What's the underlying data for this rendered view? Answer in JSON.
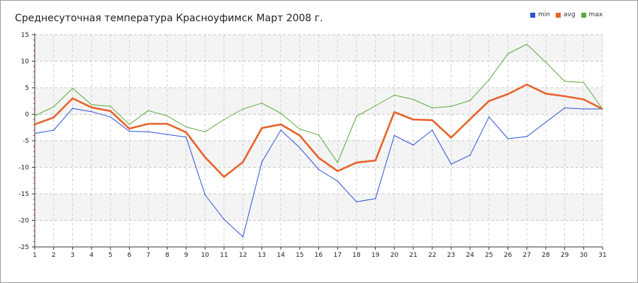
{
  "chart_data": {
    "type": "line",
    "title": "Среднесуточная температура Красноуфимск  Март 2008 г.",
    "xlabel": "",
    "ylabel": "",
    "x": [
      "1",
      "2",
      "3",
      "4",
      "5",
      "6",
      "7",
      "8",
      "9",
      "10",
      "11",
      "12",
      "13",
      "14",
      "15",
      "16",
      "17",
      "18",
      "19",
      "20",
      "21",
      "22",
      "23",
      "24",
      "25",
      "26",
      "27",
      "28",
      "29",
      "30",
      "31"
    ],
    "ylim": [
      -25,
      15
    ],
    "yticks": [
      "15",
      "10",
      "5",
      "0",
      "-5",
      "-10",
      "-15",
      "-20",
      "-25"
    ],
    "grid": true,
    "legend_position": "top-right",
    "series": [
      {
        "name": "min",
        "color": "#2b50d8",
        "values": [
          -3.6,
          -3,
          1.1,
          0.5,
          -0.5,
          -3.2,
          -3.3,
          -3.8,
          -4.3,
          -15.2,
          -19.8,
          -23.1,
          -9,
          -3,
          -6.3,
          -10.4,
          -12.6,
          -16.5,
          -15.9,
          -4,
          -5.8,
          -3,
          -9.4,
          -7.7,
          -0.5,
          -4.6,
          -4.2,
          -1.5,
          1.2,
          1,
          1
        ]
      },
      {
        "name": "avg",
        "color": "#e8622a",
        "values": [
          -1.9,
          -0.6,
          3,
          1.3,
          0.6,
          -2.7,
          -1.8,
          -1.8,
          -3.4,
          -8.1,
          -11.8,
          -9,
          -2.6,
          -1.9,
          -4,
          -8.2,
          -10.7,
          -9.1,
          -8.7,
          0.4,
          -1,
          -1.1,
          -4.4,
          -0.9,
          2.5,
          3.8,
          5.6,
          3.9,
          3.4,
          2.8,
          1
        ]
      },
      {
        "name": "max",
        "color": "#5aaa3a",
        "values": [
          -0.3,
          1.4,
          4.9,
          1.8,
          1.5,
          -1.9,
          0.7,
          -0.3,
          -2.4,
          -3.3,
          -1,
          1,
          2.1,
          0.2,
          -2.8,
          -3.9,
          -9.1,
          -0.4,
          1.6,
          3.6,
          2.8,
          1.2,
          1.5,
          2.6,
          6.5,
          11.4,
          13.2,
          9.8,
          6.2,
          6,
          1
        ]
      }
    ]
  }
}
